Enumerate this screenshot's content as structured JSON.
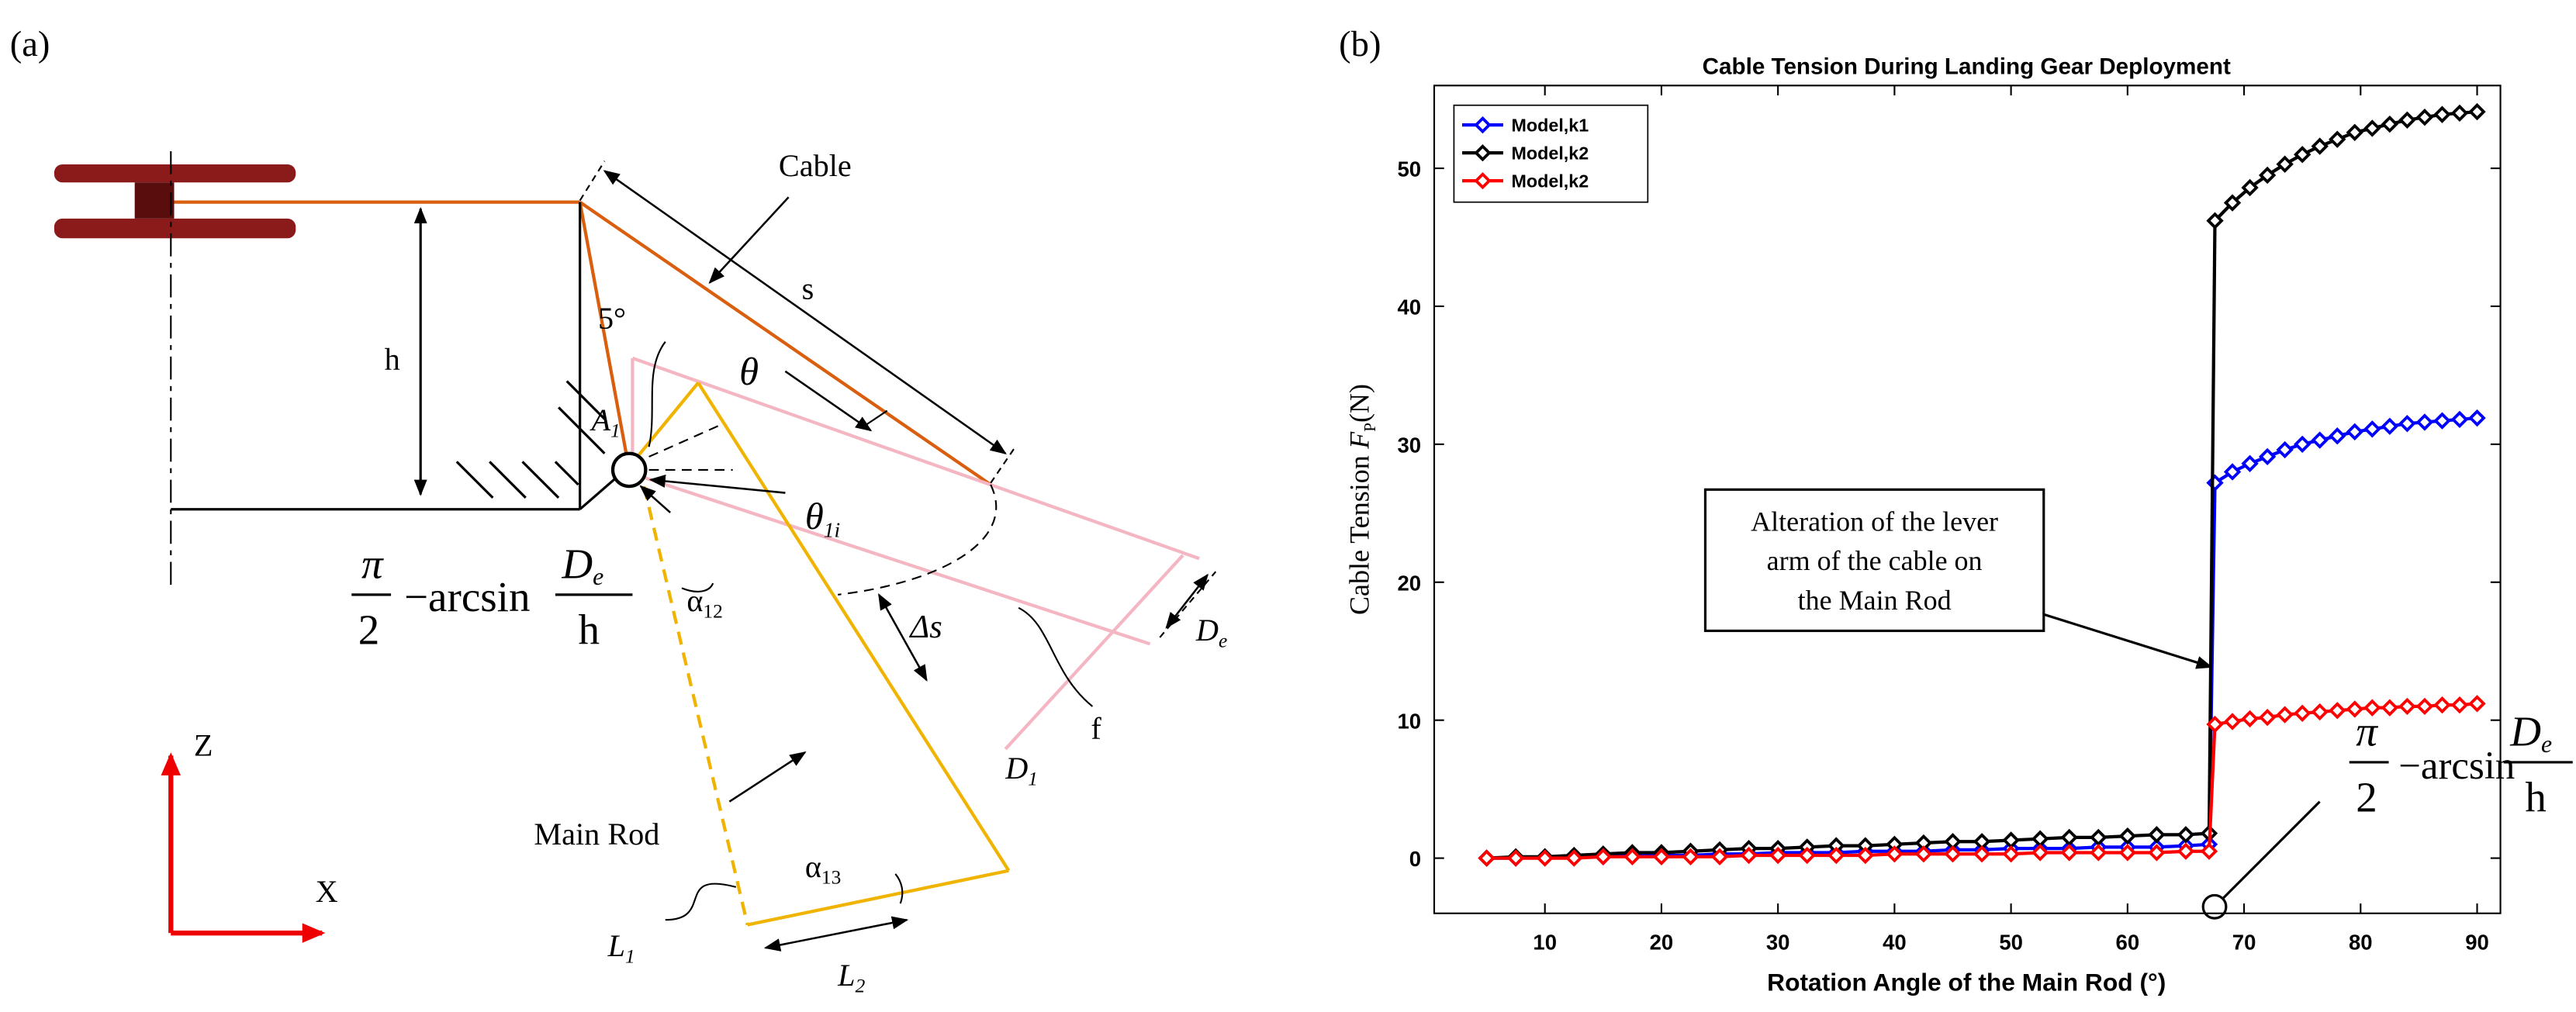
{
  "panel_a_label": "(a)",
  "panel_b_label": "(b)",
  "diagram": {
    "cable": "Cable",
    "s": "s",
    "h": "h",
    "five_deg": "5°",
    "theta": "θ",
    "A1": {
      "main": "A",
      "sub": "1"
    },
    "theta1i": {
      "main": "θ",
      "sub": "1i"
    },
    "formula": {
      "pi": "π",
      "two": "2",
      "minus_arcsin": "−arcsin",
      "D": "D",
      "e": "e",
      "h": "h"
    },
    "alpha12": {
      "main": "α",
      "sub": "12"
    },
    "delta_s": "Δs",
    "De": {
      "main": "D",
      "sub": "e"
    },
    "f": "f",
    "D1": {
      "main": "D",
      "sub": "1"
    },
    "main_rod": "Main Rod",
    "alpha13": {
      "main": "α",
      "sub": "13"
    },
    "L1": {
      "main": "L",
      "sub": "1"
    },
    "L2": {
      "main": "L",
      "sub": "2"
    },
    "Z": "Z",
    "X": "X"
  },
  "chart_data": {
    "type": "line",
    "title": "Cable Tension During Landing Gear Deployment",
    "xlabel": "Rotation Angle of the Main Rod (°)",
    "ylabel": {
      "text": "Cable Tension",
      "symbol": "F",
      "sub": "P",
      "unit": "(N)"
    },
    "x": [
      5,
      7.5,
      10,
      12.5,
      15,
      17.5,
      20,
      22.5,
      25,
      27.5,
      30,
      32.5,
      35,
      37.5,
      40,
      42.5,
      45,
      47.5,
      50,
      52.5,
      55,
      57.5,
      60,
      62.5,
      65,
      67,
      67.5,
      69,
      70.5,
      72,
      73.5,
      75,
      76.5,
      78,
      79.5,
      81,
      82.5,
      84,
      85.5,
      87,
      88.5,
      90
    ],
    "series": [
      {
        "name": "Model,k1",
        "color": "#0000ff",
        "values": [
          0,
          0,
          0.1,
          0.1,
          0.1,
          0.2,
          0.2,
          0.2,
          0.3,
          0.3,
          0.4,
          0.4,
          0.4,
          0.5,
          0.5,
          0.5,
          0.6,
          0.6,
          0.7,
          0.7,
          0.7,
          0.8,
          0.8,
          0.8,
          0.9,
          1.0,
          27.2,
          28,
          28.6,
          29.1,
          29.6,
          30,
          30.3,
          30.6,
          30.9,
          31.1,
          31.3,
          31.5,
          31.6,
          31.7,
          31.8,
          31.9
        ]
      },
      {
        "name": "Model,k2",
        "color": "#000000",
        "values": [
          0,
          0.1,
          0.1,
          0.2,
          0.3,
          0.4,
          0.4,
          0.5,
          0.6,
          0.7,
          0.7,
          0.8,
          0.9,
          0.9,
          1.0,
          1.1,
          1.2,
          1.2,
          1.3,
          1.4,
          1.5,
          1.5,
          1.6,
          1.7,
          1.7,
          1.8,
          46.2,
          47.5,
          48.6,
          49.5,
          50.3,
          51,
          51.6,
          52.1,
          52.6,
          52.9,
          53.2,
          53.5,
          53.7,
          53.9,
          54,
          54.1
        ]
      },
      {
        "name": "Model,k2",
        "color": "#ff0000",
        "values": [
          0,
          0,
          0,
          0,
          0.1,
          0.1,
          0.1,
          0.1,
          0.1,
          0.2,
          0.2,
          0.2,
          0.2,
          0.2,
          0.3,
          0.3,
          0.3,
          0.3,
          0.3,
          0.4,
          0.4,
          0.4,
          0.4,
          0.4,
          0.5,
          0.5,
          9.7,
          9.9,
          10.1,
          10.2,
          10.4,
          10.5,
          10.6,
          10.7,
          10.8,
          10.9,
          10.9,
          11,
          11,
          11.1,
          11.1,
          11.2
        ]
      }
    ],
    "xlim": [
      0.5,
      92
    ],
    "ylim": [
      -4,
      56
    ],
    "xticks": [
      10,
      20,
      30,
      40,
      50,
      60,
      70,
      80,
      90
    ],
    "yticks": [
      0,
      10,
      20,
      30,
      40,
      50
    ],
    "grid": false,
    "legend": "upper left",
    "annotation": [
      "Alteration of the lever",
      "arm of the cable on",
      "the Main Rod"
    ],
    "formula": {
      "pi": "π",
      "two": "2",
      "minus_arcsin": "−arcsin",
      "D": "D",
      "e": "e",
      "h": "h"
    }
  }
}
